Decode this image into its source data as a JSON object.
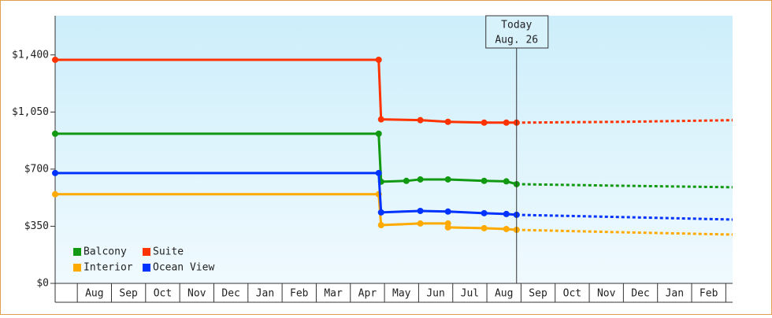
{
  "chart_data": {
    "type": "line",
    "ylim": [
      0,
      1640
    ],
    "yticks": [
      {
        "value": 0,
        "label": "$0"
      },
      {
        "value": 350,
        "label": "$350"
      },
      {
        "value": 700,
        "label": "$700"
      },
      {
        "value": 1050,
        "label": "$1,050"
      },
      {
        "value": 1400,
        "label": "$1,400"
      }
    ],
    "xlim": [
      -0.65,
      19.2
    ],
    "xticks": [
      {
        "value": 0,
        "label": "Aug"
      },
      {
        "value": 1,
        "label": "Sep"
      },
      {
        "value": 2,
        "label": "Oct"
      },
      {
        "value": 3,
        "label": "Nov"
      },
      {
        "value": 4,
        "label": "Dec"
      },
      {
        "value": 5,
        "label": "Jan"
      },
      {
        "value": 6,
        "label": "Feb"
      },
      {
        "value": 7,
        "label": "Mar"
      },
      {
        "value": 8,
        "label": "Apr"
      },
      {
        "value": 9,
        "label": "May"
      },
      {
        "value": 10,
        "label": "Jun"
      },
      {
        "value": 11,
        "label": "Jul"
      },
      {
        "value": 12,
        "label": "Aug"
      },
      {
        "value": 13,
        "label": "Sep"
      },
      {
        "value": 14,
        "label": "Oct"
      },
      {
        "value": 15,
        "label": "Nov"
      },
      {
        "value": 16,
        "label": "Dec"
      },
      {
        "value": 17,
        "label": "Jan"
      },
      {
        "value": 18,
        "label": "Feb"
      }
    ],
    "annotation": {
      "x": 12.87,
      "lines": [
        "Today",
        "Aug. 26"
      ]
    },
    "legend": "lower left",
    "series": [
      {
        "name": "Balcony",
        "color": "#119911",
        "x": [
          -0.65,
          8.83,
          8.9,
          9.64,
          10.05,
          10.86,
          11.92,
          12.57,
          12.87
        ],
        "values": [
          917,
          917,
          623,
          628,
          637,
          637,
          628,
          625,
          608
        ],
        "forecast_x": [
          12.87,
          16.0,
          19.2
        ],
        "forecast_values": [
          608,
          598,
          589
        ]
      },
      {
        "name": "Suite",
        "color": "#ff3300",
        "x": [
          -0.65,
          8.83,
          8.9,
          10.05,
          10.86,
          11.92,
          12.57,
          12.87
        ],
        "values": [
          1370,
          1370,
          1005,
          1000,
          990,
          985,
          985,
          985
        ],
        "forecast_x": [
          12.87,
          16.0,
          19.2
        ],
        "forecast_values": [
          985,
          990,
          1000
        ]
      },
      {
        "name": "Interior",
        "color": "#ffaa00",
        "x": [
          -0.65,
          8.83,
          8.9,
          10.05,
          10.86,
          10.86,
          11.92,
          12.57,
          12.87
        ],
        "values": [
          546,
          546,
          357,
          367,
          367,
          343,
          338,
          333,
          328
        ],
        "forecast_x": [
          12.87,
          16.0,
          19.2
        ],
        "forecast_values": [
          328,
          313,
          299
        ]
      },
      {
        "name": "Ocean View",
        "color": "#0033ff",
        "x": [
          -0.65,
          8.83,
          8.9,
          10.05,
          10.86,
          11.92,
          12.57,
          12.87
        ],
        "values": [
          676,
          676,
          435,
          444,
          440,
          430,
          425,
          420
        ],
        "forecast_x": [
          12.87,
          16.0,
          19.2
        ],
        "forecast_values": [
          420,
          406,
          391
        ]
      }
    ]
  }
}
